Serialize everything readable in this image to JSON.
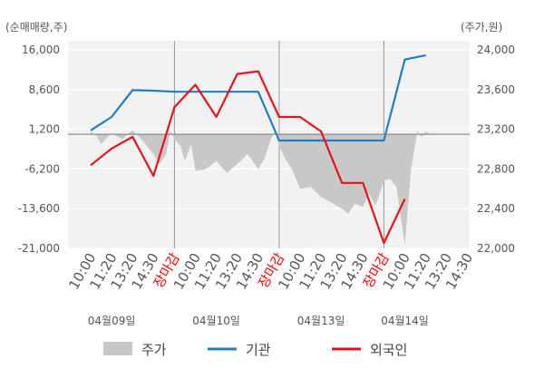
{
  "chart_data": {
    "type": "line",
    "left_axis": {
      "unit_label": "(순매매량,주)",
      "ticks": [
        "16,000",
        "8,600",
        "1,200",
        "-6,200",
        "-13,600",
        "-21,000"
      ],
      "tick_values": [
        16000,
        8600,
        1200,
        -6200,
        -13600,
        -21000
      ],
      "range": [
        -21000,
        16000
      ]
    },
    "right_axis": {
      "unit_label": "(주가,원)",
      "ticks": [
        "24,000",
        "23,600",
        "23,200",
        "22,800",
        "22,400",
        "22,000"
      ],
      "tick_values": [
        24000,
        23600,
        23200,
        22800,
        22400,
        22000
      ],
      "range": [
        22000,
        24000
      ]
    },
    "x_labels": [
      "10:00",
      "11:20",
      "13:20",
      "14:30",
      "장마감",
      "10:00",
      "11:20",
      "13:20",
      "14:30",
      "장마감",
      "10:00",
      "11:20",
      "13:20",
      "14:30",
      "장마감",
      "10:00",
      "11:20",
      "13:20",
      "14:30"
    ],
    "session_end_label": "장마감",
    "dates": [
      "04월09일",
      "04월10일",
      "04월13일",
      "04월14일"
    ],
    "date_slot": [
      1,
      6,
      11,
      15
    ],
    "price_baseline": 23150,
    "series": [
      {
        "name": "주가",
        "kind": "area",
        "axis": "right",
        "color": "#c8c8c8",
        "points": [
          [
            0,
            23180
          ],
          [
            0.3,
            23130
          ],
          [
            0.5,
            23050
          ],
          [
            1,
            23160
          ],
          [
            1.5,
            23100
          ],
          [
            2,
            23190
          ],
          [
            2.5,
            23080
          ],
          [
            3,
            22950
          ],
          [
            3.3,
            22850
          ],
          [
            3.6,
            22950
          ],
          [
            3.8,
            23180
          ],
          [
            4,
            23100
          ],
          [
            4.3,
            23030
          ],
          [
            4.5,
            22880
          ],
          [
            4.8,
            23050
          ],
          [
            5,
            22780
          ],
          [
            5.5,
            22800
          ],
          [
            6,
            22880
          ],
          [
            6.5,
            22760
          ],
          [
            7,
            22850
          ],
          [
            7.5,
            22950
          ],
          [
            8,
            22800
          ],
          [
            8.3,
            22900
          ],
          [
            8.6,
            23100
          ],
          [
            8.8,
            23180
          ],
          [
            9,
            23030
          ],
          [
            9.3,
            22900
          ],
          [
            9.6,
            22800
          ],
          [
            10,
            22600
          ],
          [
            10.5,
            22620
          ],
          [
            11,
            22520
          ],
          [
            11.5,
            22460
          ],
          [
            12,
            22400
          ],
          [
            12.3,
            22350
          ],
          [
            12.6,
            22450
          ],
          [
            13,
            22420
          ],
          [
            13.3,
            22550
          ],
          [
            13.6,
            22430
          ],
          [
            14,
            22680
          ],
          [
            14.3,
            22700
          ],
          [
            14.6,
            22620
          ],
          [
            15,
            22030
          ],
          [
            15.3,
            22800
          ],
          [
            15.6,
            23180
          ],
          [
            15.8,
            23120
          ],
          [
            16,
            23180
          ],
          [
            16.2,
            23150
          ]
        ]
      },
      {
        "name": "기관",
        "kind": "line",
        "axis": "left",
        "color": "#1e7fc8",
        "points": [
          [
            0,
            1000
          ],
          [
            1,
            3500
          ],
          [
            2,
            8500
          ],
          [
            3,
            8400
          ],
          [
            4,
            8200
          ],
          [
            5,
            8200
          ],
          [
            6,
            8200
          ],
          [
            7,
            8200
          ],
          [
            8,
            8200
          ],
          [
            9,
            -900
          ],
          [
            10,
            -900
          ],
          [
            11,
            -900
          ],
          [
            12,
            -900
          ],
          [
            13,
            -900
          ],
          [
            14,
            -900
          ],
          [
            15,
            14200
          ],
          [
            16,
            15000
          ]
        ]
      },
      {
        "name": "외국인",
        "kind": "line",
        "axis": "left",
        "color": "#e8131a",
        "points": [
          [
            0,
            -5500
          ],
          [
            1,
            -2400
          ],
          [
            2,
            -200
          ],
          [
            3,
            -7500
          ],
          [
            4,
            5300
          ],
          [
            5,
            9500
          ],
          [
            6,
            3500
          ],
          [
            7,
            11500
          ],
          [
            8,
            12000
          ],
          [
            9,
            3500
          ],
          [
            10,
            3500
          ],
          [
            11,
            800
          ],
          [
            12,
            -8800
          ],
          [
            13,
            -8800
          ],
          [
            14,
            -20000
          ],
          [
            15,
            -11800
          ]
        ]
      }
    ],
    "legend": [
      {
        "name": "주가",
        "swatch": "area",
        "color": "#c8c8c8"
      },
      {
        "name": "기관",
        "swatch": "line",
        "color": "#1e7fc8"
      },
      {
        "name": "외국인",
        "swatch": "line",
        "color": "#e8131a"
      }
    ],
    "grid": true,
    "colors": {
      "plot_background": "#f2f2f2",
      "session_line": "#999999",
      "session_text": "#ff0000",
      "baseline": "#777777"
    }
  }
}
